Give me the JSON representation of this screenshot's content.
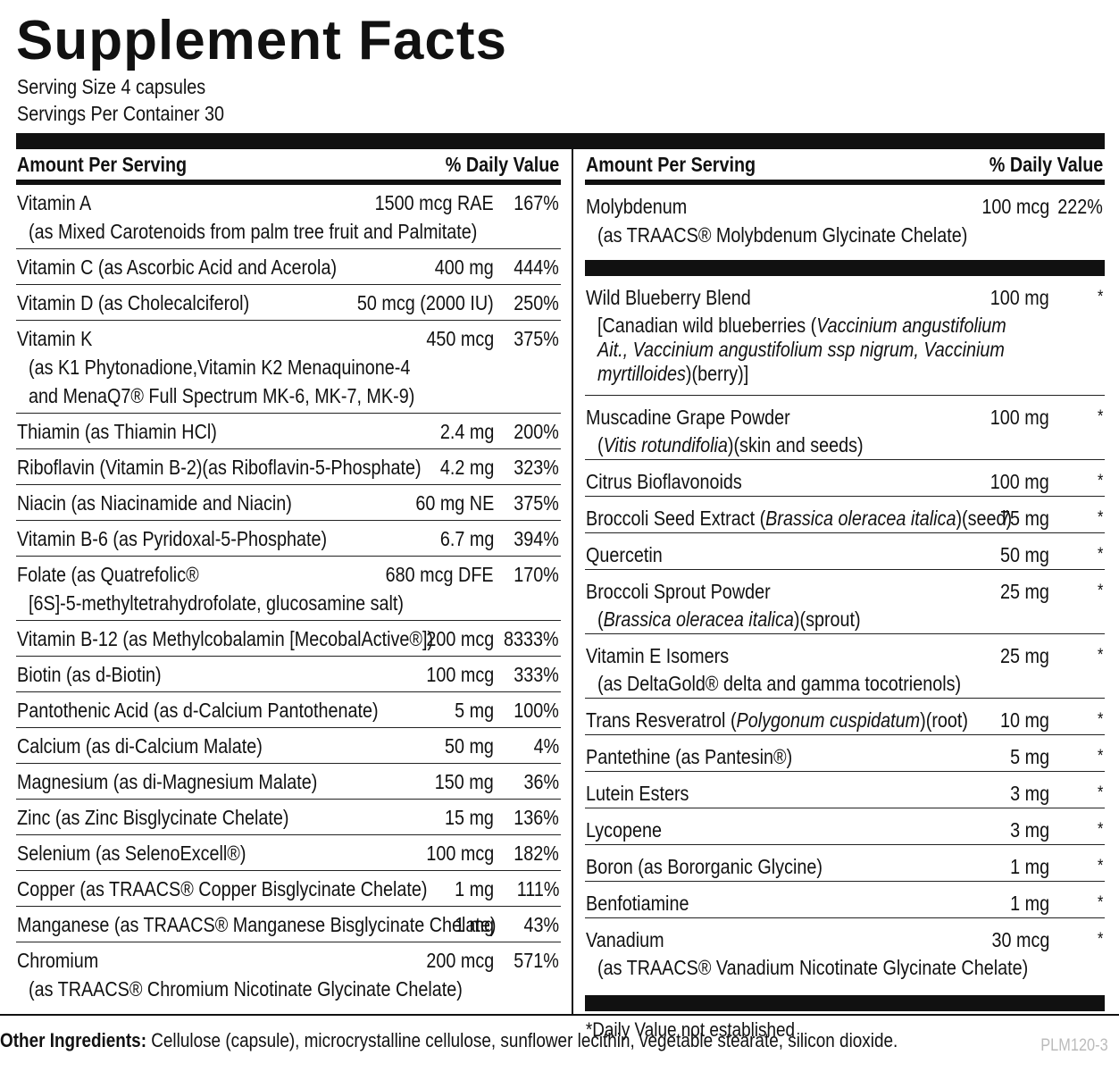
{
  "title": "Supplement Facts",
  "serving_size": "Serving Size 4 capsules",
  "servings_per_container": "Servings Per Container 30",
  "header": {
    "amount_per_serving": "Amount Per Serving",
    "daily_value": "% Daily Value"
  },
  "left_rows": [
    {
      "name": "Vitamin A",
      "sub": [
        "(as Mixed Carotenoids from palm tree fruit and Palmitate)"
      ],
      "amount": "1500 mcg RAE",
      "dv": "167%"
    },
    {
      "name": "Vitamin C (as Ascorbic Acid and Acerola)",
      "sub": [],
      "amount": "400 mg",
      "dv": "444%"
    },
    {
      "name": "Vitamin D (as Cholecalciferol)",
      "sub": [],
      "amount": "50 mcg (2000 IU)",
      "dv": "250%"
    },
    {
      "name": "Vitamin K",
      "sub": [
        "(as K1 Phytonadione,Vitamin K2 Menaquinone-4",
        "and MenaQ7® Full Spectrum MK-6, MK-7, MK-9)"
      ],
      "amount": "450 mcg",
      "dv": "375%"
    },
    {
      "name": "Thiamin (as Thiamin HCl)",
      "sub": [],
      "amount": "2.4 mg",
      "dv": "200%"
    },
    {
      "name": "Riboflavin (Vitamin B-2)(as Riboflavin-5-Phosphate)",
      "sub": [],
      "amount": "4.2 mg",
      "dv": "323%"
    },
    {
      "name": "Niacin (as Niacinamide and Niacin)",
      "sub": [],
      "amount": "60 mg NE",
      "dv": "375%"
    },
    {
      "name": "Vitamin B-6 (as Pyridoxal-5-Phosphate)",
      "sub": [],
      "amount": "6.7 mg",
      "dv": "394%"
    },
    {
      "name": "Folate (as Quatrefolic®",
      "sub": [
        "[6S]-5-methyltetrahydrofolate, glucosamine salt)"
      ],
      "amount": "680 mcg DFE",
      "dv": "170%"
    },
    {
      "name": "Vitamin B-12 (as Methylcobalamin [MecobalActive®])",
      "sub": [],
      "amount": "200 mcg",
      "dv": "8333%"
    },
    {
      "name": "Biotin (as d-Biotin)",
      "sub": [],
      "amount": "100 mcg",
      "dv": "333%"
    },
    {
      "name": "Pantothenic Acid (as d-Calcium Pantothenate)",
      "sub": [],
      "amount": "5 mg",
      "dv": "100%"
    },
    {
      "name": "Calcium (as di-Calcium Malate)",
      "sub": [],
      "amount": "50 mg",
      "dv": "4%"
    },
    {
      "name": "Magnesium (as di-Magnesium Malate)",
      "sub": [],
      "amount": "150 mg",
      "dv": "36%"
    },
    {
      "name": "Zinc (as Zinc Bisglycinate Chelate)",
      "sub": [],
      "amount": "15 mg",
      "dv": "136%"
    },
    {
      "name": "Selenium (as SelenoExcell®)",
      "sub": [],
      "amount": "100 mcg",
      "dv": "182%"
    },
    {
      "name": "Copper (as TRAACS® Copper Bisglycinate Chelate)",
      "sub": [],
      "amount": "1 mg",
      "dv": "111%"
    },
    {
      "name": "Manganese (as TRAACS® Manganese Bisglycinate Chelate)",
      "sub": [],
      "amount": "1 mg",
      "dv": "43%"
    },
    {
      "name": "Chromium",
      "sub": [
        "(as TRAACS® Chromium Nicotinate Glycinate Chelate)"
      ],
      "amount": "200 mcg",
      "dv": "571%"
    }
  ],
  "right_top_rows": [
    {
      "name": "Molybdenum",
      "sub": [
        "(as TRAACS® Molybdenum Glycinate Chelate)"
      ],
      "amount": "100 mcg",
      "dv": "222%"
    }
  ],
  "right_rows": [
    {
      "name": "Wild Blueberry Blend",
      "sub_html": [
        "[Canadian wild blueberries (<i>Vaccinium angustifolium</i>",
        "<i>Ait., Vaccinium angustifolium ssp nigrum, Vaccinium</i>",
        "<i>myrtilloides</i>)(berry)]"
      ],
      "amount": "100 mg",
      "dv": "*"
    },
    {
      "name": "Muscadine Grape Powder",
      "sub_html": [
        "(<i>Vitis rotundifolia</i>)(skin and seeds)"
      ],
      "amount": "100 mg",
      "dv": "*"
    },
    {
      "name": "Citrus Bioflavonoids",
      "sub_html": [],
      "amount": "100 mg",
      "dv": "*"
    },
    {
      "name_html": "Broccoli Seed Extract (<i>Brassica oleracea italica</i>)(seed)",
      "sub_html": [],
      "amount": "75 mg",
      "dv": "*"
    },
    {
      "name": "Quercetin",
      "sub_html": [],
      "amount": "50 mg",
      "dv": "*"
    },
    {
      "name": "Broccoli Sprout Powder",
      "sub_html": [
        "(<i>Brassica oleracea italica</i>)(sprout)"
      ],
      "amount": "25 mg",
      "dv": "*"
    },
    {
      "name": "Vitamin E Isomers",
      "sub_html": [
        "(as DeltaGold® delta and gamma tocotrienols)"
      ],
      "amount": "25 mg",
      "dv": "*"
    },
    {
      "name_html": "Trans Resveratrol (<i>Polygonum cuspidatum</i>)(root)",
      "sub_html": [],
      "amount": "10 mg",
      "dv": "*"
    },
    {
      "name": "Pantethine (as Pantesin®)",
      "sub_html": [],
      "amount": "5 mg",
      "dv": "*"
    },
    {
      "name": "Lutein Esters",
      "sub_html": [],
      "amount": "3 mg",
      "dv": "*"
    },
    {
      "name": "Lycopene",
      "sub_html": [],
      "amount": "3 mg",
      "dv": "*"
    },
    {
      "name": "Boron (as Bororganic Glycine)",
      "sub_html": [],
      "amount": "1 mg",
      "dv": "*"
    },
    {
      "name": "Benfotiamine",
      "sub_html": [],
      "amount": "1 mg",
      "dv": "*"
    },
    {
      "name": "Vanadium",
      "sub_html": [
        "(as TRAACS® Vanadium Nicotinate Glycinate Chelate)"
      ],
      "amount": "30 mcg",
      "dv": "*"
    }
  ],
  "footnote": "*Daily Value not established",
  "other_ingredients_label": "Other Ingredients:",
  "other_ingredients": " Cellulose (capsule), microcrystalline cellulose, sunflower lecithin, vegetable stearate, silicon dioxide.",
  "product_code": "PLM120-3"
}
